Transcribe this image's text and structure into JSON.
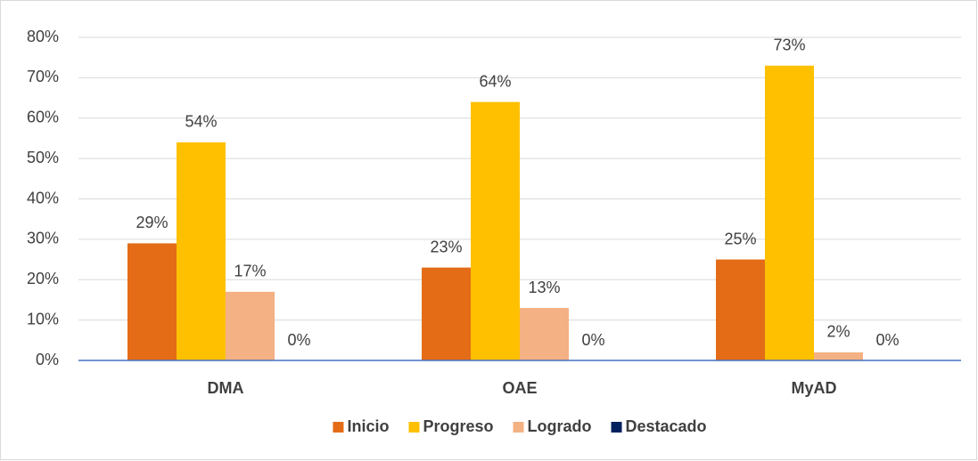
{
  "chart_data": {
    "type": "bar",
    "categories": [
      "DMA",
      "OAE",
      "MyAD"
    ],
    "series": [
      {
        "name": "Inicio",
        "color": "#e46c17",
        "values": [
          29,
          23,
          25
        ],
        "value_labels": [
          "29%",
          "23%",
          "25%"
        ]
      },
      {
        "name": "Progreso",
        "color": "#ffc000",
        "values": [
          54,
          64,
          73
        ],
        "value_labels": [
          "54%",
          "64%",
          "73%"
        ]
      },
      {
        "name": "Logrado",
        "color": "#f4b183",
        "values": [
          17,
          13,
          2
        ],
        "value_labels": [
          "17%",
          "13%",
          "2%"
        ]
      },
      {
        "name": "Destacado",
        "color": "#002060",
        "values": [
          0,
          0,
          0
        ],
        "value_labels": [
          "0%",
          "0%",
          "0%"
        ]
      }
    ],
    "ylim": [
      0,
      80
    ],
    "yticks": [
      {
        "value": 0,
        "label": "0%"
      },
      {
        "value": 10,
        "label": "10%"
      },
      {
        "value": 20,
        "label": "20%"
      },
      {
        "value": 30,
        "label": "30%"
      },
      {
        "value": 40,
        "label": "40%"
      },
      {
        "value": 50,
        "label": "50%"
      },
      {
        "value": 60,
        "label": "60%"
      },
      {
        "value": 70,
        "label": "70%"
      },
      {
        "value": 80,
        "label": "80%"
      }
    ],
    "grid": true,
    "legend": "bottom"
  }
}
